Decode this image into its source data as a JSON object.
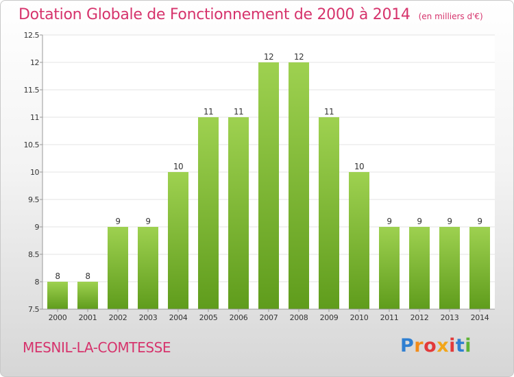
{
  "header": {
    "title": "Dotation Globale de Fonctionnement de 2000 à 2014",
    "unit_note": "(en milliers d'€)"
  },
  "footer": {
    "commune": "MESNIL-LA-COMTESSE",
    "brand": "Proxiti",
    "brand_colors": [
      "#2f7fd1",
      "#f28c1a",
      "#e23a3a",
      "#f2a61a",
      "#e23a3a",
      "#2f7fd1",
      "#5fb336"
    ]
  },
  "colors": {
    "accent": "#d6336c",
    "bar_top": "#9ed150",
    "bar_bottom": "#5f9c1c",
    "axis": "#999999",
    "grid": "#e3e3e3",
    "text": "#333333"
  },
  "chart_data": {
    "type": "bar",
    "categories": [
      "2000",
      "2001",
      "2002",
      "2003",
      "2004",
      "2005",
      "2006",
      "2007",
      "2008",
      "2009",
      "2010",
      "2011",
      "2012",
      "2013",
      "2014"
    ],
    "values": [
      8,
      8,
      9,
      9,
      10,
      11,
      11,
      12,
      12,
      11,
      10,
      9,
      9,
      9,
      9
    ],
    "data_labels": [
      "8",
      "8",
      "9",
      "9",
      "10",
      "11",
      "11",
      "12",
      "12",
      "11",
      "10",
      "9",
      "9",
      "9",
      "9"
    ],
    "ylim": [
      7.5,
      12.5
    ],
    "yticks": [
      7.5,
      8,
      8.5,
      9,
      9.5,
      10,
      10.5,
      11,
      11.5,
      12,
      12.5
    ],
    "ytick_labels": [
      "7.5",
      "8",
      "8.5",
      "9",
      "9.5",
      "10",
      "10.5",
      "11",
      "11.5",
      "12",
      "12.5"
    ],
    "grid": true,
    "legend": "none"
  }
}
